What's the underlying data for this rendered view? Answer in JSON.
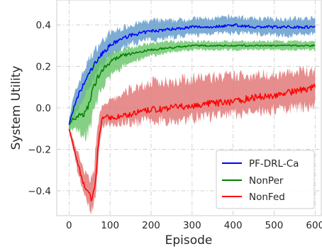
{
  "chart_data": {
    "type": "line",
    "title": "",
    "xlabel": "Episode",
    "ylabel": "System Utility",
    "xlim": [
      -30,
      615
    ],
    "ylim": [
      -0.52,
      0.52
    ],
    "xticks": [
      0,
      100,
      200,
      300,
      400,
      500,
      600
    ],
    "xtick_labels": [
      "0",
      "100",
      "200",
      "300",
      "400",
      "500",
      "600"
    ],
    "yticks": [
      -0.4,
      -0.2,
      0.0,
      0.2,
      0.4
    ],
    "ytick_labels": [
      "−0.4",
      "−0.2",
      "0.0",
      "0.2",
      "0.4"
    ],
    "grid": true,
    "grid_style": "dash-dot",
    "legend_position": "bottom-right",
    "series": [
      {
        "name": "PF-DRL-Ca",
        "color": "#0000ff",
        "band_color": "#5b97c9",
        "x": [
          0,
          10,
          25,
          50,
          75,
          100,
          125,
          150,
          200,
          250,
          300,
          350,
          400,
          450,
          500,
          550,
          600
        ],
        "mean": [
          -0.08,
          -0.01,
          0.07,
          0.17,
          0.25,
          0.3,
          0.33,
          0.35,
          0.37,
          0.38,
          0.39,
          0.39,
          0.4,
          0.39,
          0.39,
          0.39,
          0.39
        ],
        "upper": [
          -0.05,
          0.04,
          0.13,
          0.24,
          0.31,
          0.36,
          0.38,
          0.4,
          0.42,
          0.42,
          0.43,
          0.43,
          0.44,
          0.43,
          0.43,
          0.43,
          0.43
        ],
        "lower": [
          -0.11,
          -0.06,
          0.01,
          0.1,
          0.19,
          0.24,
          0.28,
          0.31,
          0.33,
          0.34,
          0.35,
          0.36,
          0.36,
          0.36,
          0.35,
          0.35,
          0.36
        ]
      },
      {
        "name": "NonPer",
        "color": "#008000",
        "band_color": "#66c466",
        "x": [
          0,
          10,
          25,
          40,
          50,
          60,
          75,
          100,
          125,
          150,
          200,
          250,
          300,
          350,
          400,
          450,
          500,
          550,
          600
        ],
        "mean": [
          -0.08,
          -0.05,
          -0.04,
          -0.02,
          0.03,
          0.1,
          0.17,
          0.22,
          0.25,
          0.26,
          0.28,
          0.29,
          0.3,
          0.3,
          0.3,
          0.3,
          0.3,
          0.3,
          0.3
        ],
        "upper": [
          -0.06,
          0.0,
          0.03,
          0.1,
          0.16,
          0.2,
          0.24,
          0.26,
          0.28,
          0.29,
          0.31,
          0.32,
          0.32,
          0.32,
          0.32,
          0.32,
          0.32,
          0.32,
          0.32
        ],
        "lower": [
          -0.1,
          -0.1,
          -0.12,
          -0.13,
          -0.1,
          -0.02,
          0.08,
          0.15,
          0.19,
          0.22,
          0.25,
          0.27,
          0.28,
          0.28,
          0.28,
          0.28,
          0.28,
          0.28,
          0.28
        ]
      },
      {
        "name": "NonFed",
        "color": "#ff0000",
        "band_color": "#e07070",
        "x": [
          0,
          10,
          20,
          30,
          40,
          50,
          55,
          60,
          65,
          70,
          80,
          90,
          100,
          125,
          150,
          200,
          250,
          300,
          350,
          400,
          450,
          500,
          550,
          600
        ],
        "mean": [
          -0.1,
          -0.18,
          -0.26,
          -0.33,
          -0.39,
          -0.42,
          -0.44,
          -0.41,
          -0.33,
          -0.2,
          -0.05,
          -0.04,
          -0.05,
          -0.04,
          -0.03,
          -0.01,
          0.0,
          0.01,
          0.02,
          0.03,
          0.05,
          0.06,
          0.08,
          0.1
        ],
        "upper": [
          -0.09,
          -0.15,
          -0.21,
          -0.27,
          -0.32,
          -0.34,
          -0.34,
          -0.3,
          -0.2,
          -0.06,
          0.0,
          0.02,
          0.03,
          0.06,
          0.09,
          0.12,
          0.13,
          0.14,
          0.15,
          0.15,
          0.16,
          0.16,
          0.17,
          0.18
        ],
        "lower": [
          -0.11,
          -0.2,
          -0.3,
          -0.38,
          -0.44,
          -0.48,
          -0.5,
          -0.48,
          -0.43,
          -0.3,
          -0.09,
          -0.08,
          -0.08,
          -0.07,
          -0.07,
          -0.06,
          -0.06,
          -0.05,
          -0.04,
          -0.03,
          -0.02,
          -0.01,
          0.0,
          0.01
        ]
      }
    ]
  }
}
